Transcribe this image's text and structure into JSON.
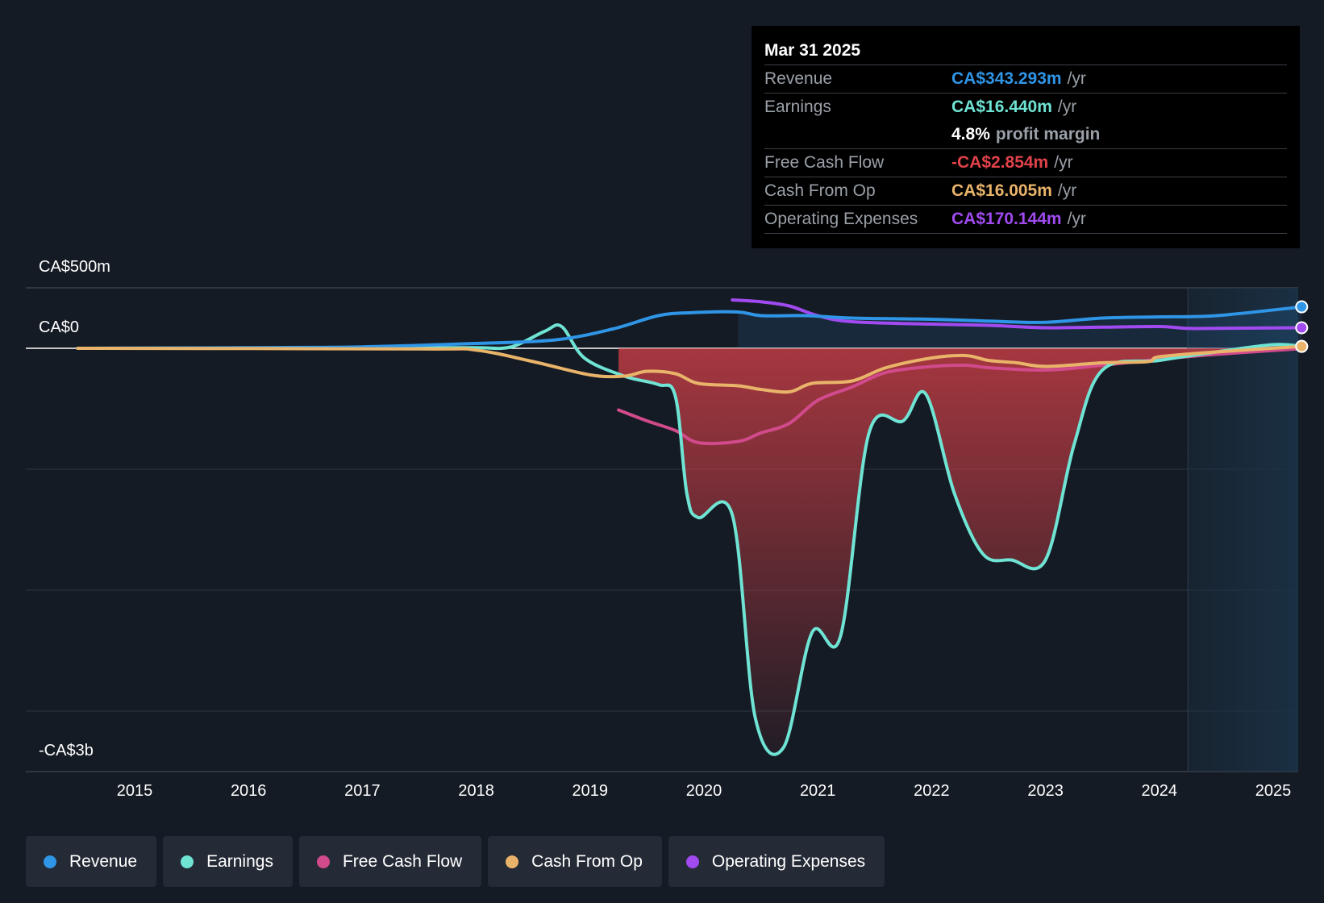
{
  "tooltip": {
    "date": "Mar 31 2025",
    "unit": "/yr",
    "revenue": {
      "label": "Revenue",
      "value": "CA$343.293m"
    },
    "earnings": {
      "label": "Earnings",
      "value": "CA$16.440m"
    },
    "margin": {
      "value": "4.8%",
      "label": "profit margin"
    },
    "fcf": {
      "label": "Free Cash Flow",
      "value": "-CA$2.854m"
    },
    "cfo": {
      "label": "Cash From Op",
      "value": "CA$16.005m"
    },
    "opex": {
      "label": "Operating Expenses",
      "value": "CA$170.144m"
    }
  },
  "y_axis": {
    "top_label": "CA$500m",
    "zero_label": "CA$0",
    "bottom_label": "-CA$3b"
  },
  "colors": {
    "revenue": "#2f95e6",
    "earnings": "#6fe4d4",
    "fcf": "#d14a8b",
    "cfo": "#e9b46a",
    "opex": "#a04af0",
    "fcf_negative": "#e0424a",
    "background": "#151b24"
  },
  "legend": [
    {
      "label": "Revenue",
      "color": "#2f95e6"
    },
    {
      "label": "Earnings",
      "color": "#6fe4d4"
    },
    {
      "label": "Free Cash Flow",
      "color": "#d14a8b"
    },
    {
      "label": "Cash From Op",
      "color": "#e9b46a"
    },
    {
      "label": "Operating Expenses",
      "color": "#a04af0"
    }
  ],
  "chart_data": {
    "type": "line",
    "x_ticks": [
      "2015",
      "2016",
      "2017",
      "2018",
      "2019",
      "2020",
      "2021",
      "2022",
      "2023",
      "2024",
      "2025"
    ],
    "y_unit": "CA$m",
    "ylim": [
      -3500,
      500
    ],
    "forecast_region_start": 2024.25,
    "series": [
      {
        "name": "Revenue",
        "points": [
          [
            2014.5,
            0
          ],
          [
            2016,
            5
          ],
          [
            2017,
            12
          ],
          [
            2018,
            40
          ],
          [
            2018.7,
            70
          ],
          [
            2019.2,
            160
          ],
          [
            2019.6,
            270
          ],
          [
            2019.9,
            295
          ],
          [
            2020.3,
            300
          ],
          [
            2020.5,
            270
          ],
          [
            2020.9,
            270
          ],
          [
            2021.3,
            250
          ],
          [
            2022,
            240
          ],
          [
            2022.5,
            225
          ],
          [
            2023,
            215
          ],
          [
            2023.5,
            250
          ],
          [
            2024,
            260
          ],
          [
            2024.5,
            270
          ],
          [
            2025.25,
            343
          ]
        ]
      },
      {
        "name": "Earnings",
        "points": [
          [
            2014.5,
            0
          ],
          [
            2017.5,
            5
          ],
          [
            2018,
            5
          ],
          [
            2018.3,
            10
          ],
          [
            2018.6,
            140
          ],
          [
            2018.75,
            180
          ],
          [
            2018.95,
            -80
          ],
          [
            2019.3,
            -230
          ],
          [
            2019.6,
            -300
          ],
          [
            2019.75,
            -400
          ],
          [
            2019.85,
            -1200
          ],
          [
            2019.95,
            -1400
          ],
          [
            2020.25,
            -1380
          ],
          [
            2020.45,
            -3050
          ],
          [
            2020.7,
            -3300
          ],
          [
            2020.95,
            -2350
          ],
          [
            2021.2,
            -2380
          ],
          [
            2021.45,
            -700
          ],
          [
            2021.75,
            -600
          ],
          [
            2021.95,
            -380
          ],
          [
            2022.2,
            -1200
          ],
          [
            2022.45,
            -1700
          ],
          [
            2022.7,
            -1750
          ],
          [
            2023.0,
            -1750
          ],
          [
            2023.25,
            -800
          ],
          [
            2023.5,
            -180
          ],
          [
            2024,
            -100
          ],
          [
            2024.5,
            -30
          ],
          [
            2025,
            30
          ],
          [
            2025.25,
            16
          ]
        ]
      },
      {
        "name": "Free Cash Flow",
        "points": [
          [
            2019.25,
            -510
          ],
          [
            2019.5,
            -600
          ],
          [
            2019.75,
            -680
          ],
          [
            2019.95,
            -780
          ],
          [
            2020.3,
            -770
          ],
          [
            2020.5,
            -700
          ],
          [
            2020.75,
            -620
          ],
          [
            2021,
            -430
          ],
          [
            2021.3,
            -320
          ],
          [
            2021.6,
            -200
          ],
          [
            2022,
            -150
          ],
          [
            2022.3,
            -140
          ],
          [
            2022.5,
            -160
          ],
          [
            2023,
            -180
          ],
          [
            2023.5,
            -140
          ],
          [
            2024,
            -90
          ],
          [
            2024.5,
            -50
          ],
          [
            2025.25,
            -3
          ]
        ]
      },
      {
        "name": "Cash From Op",
        "points": [
          [
            2014.5,
            0
          ],
          [
            2017.5,
            -5
          ],
          [
            2018,
            -15
          ],
          [
            2018.5,
            -110
          ],
          [
            2019.0,
            -220
          ],
          [
            2019.3,
            -230
          ],
          [
            2019.5,
            -190
          ],
          [
            2019.75,
            -210
          ],
          [
            2019.95,
            -290
          ],
          [
            2020.3,
            -310
          ],
          [
            2020.5,
            -340
          ],
          [
            2020.75,
            -360
          ],
          [
            2020.95,
            -290
          ],
          [
            2021.3,
            -270
          ],
          [
            2021.6,
            -160
          ],
          [
            2022,
            -80
          ],
          [
            2022.3,
            -60
          ],
          [
            2022.5,
            -100
          ],
          [
            2022.75,
            -120
          ],
          [
            2023,
            -150
          ],
          [
            2023.5,
            -120
          ],
          [
            2023.9,
            -110
          ],
          [
            2024,
            -70
          ],
          [
            2024.5,
            -30
          ],
          [
            2025.25,
            16
          ]
        ]
      },
      {
        "name": "Operating Expenses",
        "points": [
          [
            2020.25,
            400
          ],
          [
            2020.5,
            385
          ],
          [
            2020.75,
            350
          ],
          [
            2021,
            270
          ],
          [
            2021.3,
            220
          ],
          [
            2022,
            200
          ],
          [
            2022.5,
            190
          ],
          [
            2023,
            170
          ],
          [
            2023.5,
            175
          ],
          [
            2024,
            180
          ],
          [
            2024.25,
            165
          ],
          [
            2024.5,
            165
          ],
          [
            2025.25,
            170
          ]
        ]
      }
    ]
  }
}
